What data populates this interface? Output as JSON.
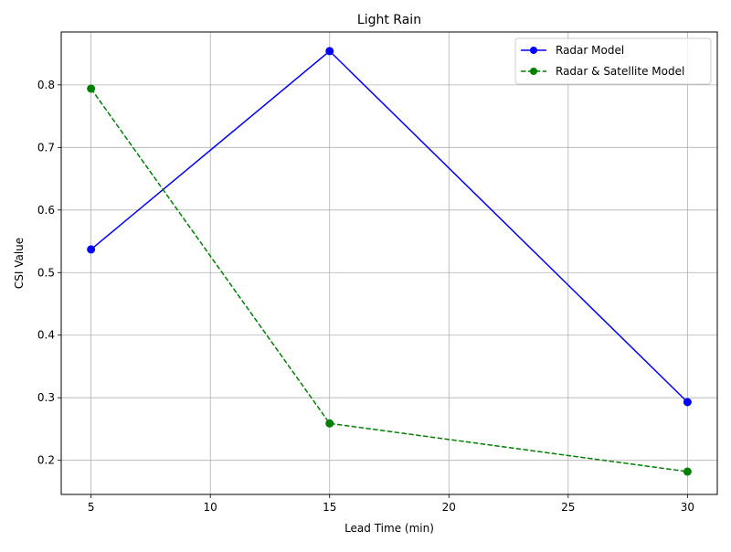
{
  "chart_data": {
    "type": "line",
    "title": "Light Rain",
    "xlabel": "Lead Time (min)",
    "ylabel": "CSI Value",
    "xlim": [
      3.75,
      31.25
    ],
    "ylim": [
      0.1455,
      0.8845
    ],
    "xticks": [
      5,
      10,
      15,
      20,
      25,
      30
    ],
    "yticks": [
      0.2,
      0.3,
      0.4,
      0.5,
      0.6,
      0.7,
      0.8
    ],
    "grid": true,
    "legend_position": "top-right",
    "x": [
      5,
      15,
      30
    ],
    "series": [
      {
        "name": "Radar Model",
        "values": [
          0.537,
          0.854,
          0.293
        ],
        "color": "#0000ff",
        "linestyle": "solid",
        "marker": "circle"
      },
      {
        "name": "Radar & Satellite Model",
        "values": [
          0.794,
          0.259,
          0.182
        ],
        "color": "#008000",
        "linestyle": "dashed",
        "marker": "circle"
      }
    ]
  }
}
